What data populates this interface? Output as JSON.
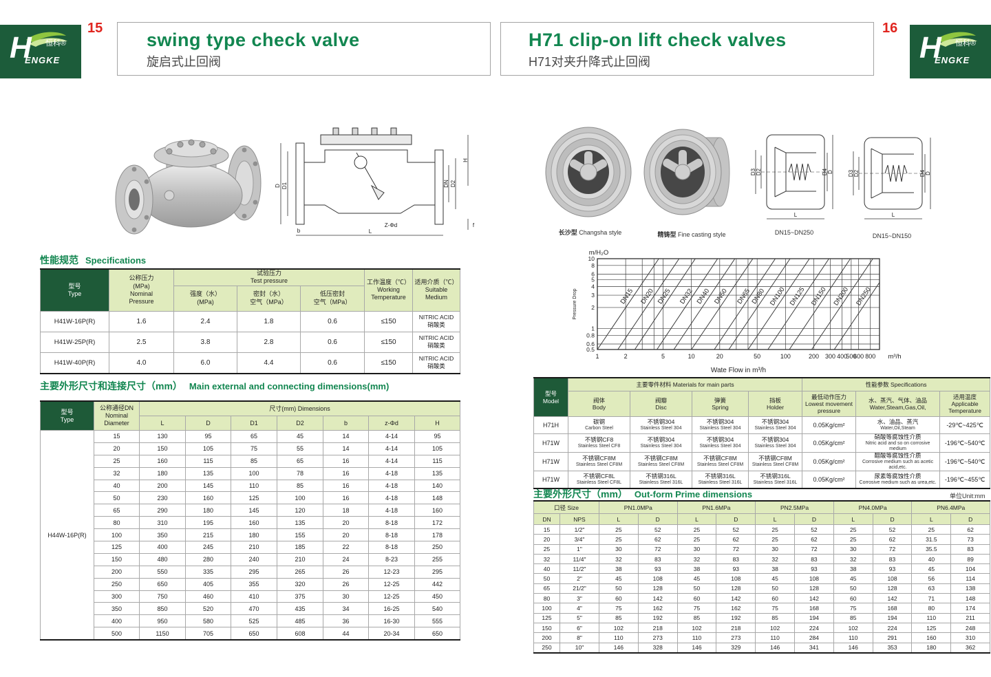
{
  "logo": {
    "brand": "H",
    "brand2": "ENGKE",
    "zh": "恒科®"
  },
  "page_left": {
    "page_number": "15",
    "title": "swing type check valve",
    "subtitle": "旋启式止回阀",
    "drawing": {
      "labels": {
        "d": "D",
        "d1": "D1",
        "dn": "DN",
        "d2": "D2",
        "h": "H",
        "l": "L",
        "b": "b",
        "f": "f",
        "zphid": "Z-Φd"
      }
    },
    "spec": {
      "title_zh": "性能规范",
      "title_en": "Specifications",
      "cols": {
        "type": "型号\nType",
        "nominal": "公称压力\n(MPa)\nNominal\nPressure",
        "test": "试验压力\nTest pressure",
        "strength": "强度（水）\n(MPa)",
        "seal": "密封（水）\n空气（MPa）",
        "low": "低压密封\n空气（MPa）",
        "working": "工作温度（℃）\nWorking\nTemperature",
        "medium": "适用介质（℃）\nSuitable\nMedium"
      },
      "rows": [
        [
          "H41W-16P(R)",
          "1.6",
          "2.4",
          "1.8",
          "0.6",
          "≤150",
          "NITRIC ACID\n硝酸类"
        ],
        [
          "H41W-25P(R)",
          "2.5",
          "3.8",
          "2.8",
          "0.6",
          "≤150",
          "NITRIC ACID\n硝酸类"
        ],
        [
          "H41W-40P(R)",
          "4.0",
          "6.0",
          "4.4",
          "0.6",
          "≤150",
          "NITRIC ACID\n硝酸类"
        ]
      ]
    },
    "dims": {
      "title_zh": "主要外形尺寸和连接尺寸（mm）",
      "title_en": "Main external and connecting dimensions(mm)",
      "cols": {
        "type": "型号\nType",
        "dn": "公称通径DN\nNominal\nDiameter",
        "group": "尺寸(mm) Dimensions",
        "sub": [
          "L",
          "D",
          "D1",
          "D2",
          "b",
          "z-Φd",
          "H"
        ]
      },
      "type_value": "H44W-16P(R)",
      "rows": [
        [
          "15",
          "130",
          "95",
          "65",
          "45",
          "14",
          "4-14",
          "95"
        ],
        [
          "20",
          "150",
          "105",
          "75",
          "55",
          "14",
          "4-14",
          "105"
        ],
        [
          "25",
          "160",
          "115",
          "85",
          "65",
          "16",
          "4-14",
          "115"
        ],
        [
          "32",
          "180",
          "135",
          "100",
          "78",
          "16",
          "4-18",
          "135"
        ],
        [
          "40",
          "200",
          "145",
          "110",
          "85",
          "16",
          "4-18",
          "140"
        ],
        [
          "50",
          "230",
          "160",
          "125",
          "100",
          "16",
          "4-18",
          "148"
        ],
        [
          "65",
          "290",
          "180",
          "145",
          "120",
          "18",
          "4-18",
          "160"
        ],
        [
          "80",
          "310",
          "195",
          "160",
          "135",
          "20",
          "8-18",
          "172"
        ],
        [
          "100",
          "350",
          "215",
          "180",
          "155",
          "20",
          "8-18",
          "178"
        ],
        [
          "125",
          "400",
          "245",
          "210",
          "185",
          "22",
          "8-18",
          "250"
        ],
        [
          "150",
          "480",
          "280",
          "240",
          "210",
          "24",
          "8-23",
          "255"
        ],
        [
          "200",
          "550",
          "335",
          "295",
          "265",
          "26",
          "12-23",
          "295"
        ],
        [
          "250",
          "650",
          "405",
          "355",
          "320",
          "26",
          "12-25",
          "442"
        ],
        [
          "300",
          "750",
          "460",
          "410",
          "375",
          "30",
          "12-25",
          "450"
        ],
        [
          "350",
          "850",
          "520",
          "470",
          "435",
          "34",
          "16-25",
          "540"
        ],
        [
          "400",
          "950",
          "580",
          "525",
          "485",
          "36",
          "16-30",
          "555"
        ],
        [
          "500",
          "1150",
          "705",
          "650",
          "608",
          "44",
          "20-34",
          "650"
        ]
      ]
    }
  },
  "page_right": {
    "page_number": "16",
    "title": "H71 clip-on lift check valves",
    "subtitle": "H71对夹升降式止回阀",
    "photos": [
      {
        "zh": "长沙型",
        "en": "Changsha style"
      },
      {
        "zh": "精铸型",
        "en": "Fine casting style"
      }
    ],
    "drawings": {
      "labels": {
        "d3": "D3",
        "d2": "D2",
        "d4": "D4",
        "d": "D",
        "l": "L"
      },
      "items": [
        {
          "caption": "DN15~DN250"
        },
        {
          "caption": "DN15~DN150"
        }
      ]
    },
    "materials": {
      "cols": {
        "model": "型号\nModel",
        "main_group": "主要零件材料 Materials for main parts",
        "body": "阀体\nBody",
        "disc": "阀瓣\nDisc",
        "spring": "弹簧\nSpring",
        "holder": "挡板\nHolder",
        "spec_group": "性能参数 Specifications",
        "pressure": "最低动作压力\nLowest movement\npressure",
        "medium": "水、蒸汽、气体、油品\nWater,Steam,Gas,Oil,",
        "temp": "适用温度\nApplicable\nTemperature"
      },
      "rows": [
        {
          "model": "H71H",
          "body": {
            "zh": "碳钢",
            "en": "Carbon Steel"
          },
          "disc": {
            "zh": "不锈钢304",
            "en": "Stainless Steel 304"
          },
          "spring": {
            "zh": "不锈钢304",
            "en": "Stainless Steel 304"
          },
          "holder": {
            "zh": "不锈钢304",
            "en": "Stainless Steel 304"
          },
          "pressure": "0.05Kg/cm²",
          "medium": {
            "zh": "水、油品、蒸汽",
            "en": "Water,Oil,Steam"
          },
          "temp": "-29℃~425℃"
        },
        {
          "model": "H71W",
          "body": {
            "zh": "不锈钢CF8",
            "en": "Stainless Steel CF8"
          },
          "disc": {
            "zh": "不锈钢304",
            "en": "Stainless Steel 304"
          },
          "spring": {
            "zh": "不锈钢304",
            "en": "Stainless Steel 304"
          },
          "holder": {
            "zh": "不锈钢304",
            "en": "Stainless Steel 304"
          },
          "pressure": "0.05Kg/cm²",
          "medium": {
            "zh": "硝酸等腐蚀性介质",
            "en": "Nitric acid and so on corrosive medium"
          },
          "temp": "-196℃~540℃"
        },
        {
          "model": "H71W",
          "body": {
            "zh": "不锈钢CF8M",
            "en": "Stainless Steel CF8M"
          },
          "disc": {
            "zh": "不锈钢CF8M",
            "en": "Stainless Steel CF8M"
          },
          "spring": {
            "zh": "不锈钢CF8M",
            "en": "Stainless Steel CF8M"
          },
          "holder": {
            "zh": "不锈钢CF8M",
            "en": "Stainless Steel CF8M"
          },
          "pressure": "0.05Kg/cm²",
          "medium": {
            "zh": "醋酸等腐蚀性介质",
            "en": "Corrosive medium such as acetic acid,etc."
          },
          "temp": "-196℃~540℃"
        },
        {
          "model": "H71W",
          "body": {
            "zh": "不锈钢CF8L",
            "en": "Stainless Steel CF8L"
          },
          "disc": {
            "zh": "不锈钢316L",
            "en": "Stainless Steel 316L"
          },
          "spring": {
            "zh": "不锈钢316L",
            "en": "Stainless Steel 316L"
          },
          "holder": {
            "zh": "不锈钢316L",
            "en": "Stainless Steel 316L"
          },
          "pressure": "0.05Kg/cm²",
          "medium": {
            "zh": "尿素等腐蚀性介质",
            "en": "Corrosive medium such as urea,etc."
          },
          "temp": "-196℃~455℃"
        }
      ]
    },
    "outform": {
      "title_zh": "主要外形尺寸（mm）",
      "title_en": "Out-form Prime dimensions",
      "unit": "单位Unit:mm",
      "cols": {
        "size": "口径 Size",
        "dn": "DN",
        "nps": "NPS",
        "L": "L",
        "D": "D",
        "pn": [
          "PN1.0MPa",
          "PN1.6MPa",
          "PN2.5MPa",
          "PN4.0MPa",
          "PN6.4MPa"
        ]
      },
      "rows": [
        [
          "15",
          "1/2\"",
          "25",
          "52",
          "25",
          "52",
          "25",
          "52",
          "25",
          "52",
          "25",
          "62"
        ],
        [
          "20",
          "3/4\"",
          "25",
          "62",
          "25",
          "62",
          "25",
          "62",
          "25",
          "62",
          "31.5",
          "73"
        ],
        [
          "25",
          "1\"",
          "30",
          "72",
          "30",
          "72",
          "30",
          "72",
          "30",
          "72",
          "35.5",
          "83"
        ],
        [
          "32",
          "11/4\"",
          "32",
          "83",
          "32",
          "83",
          "32",
          "83",
          "32",
          "83",
          "40",
          "89"
        ],
        [
          "40",
          "11/2\"",
          "38",
          "93",
          "38",
          "93",
          "38",
          "93",
          "38",
          "93",
          "45",
          "104"
        ],
        [
          "50",
          "2\"",
          "45",
          "108",
          "45",
          "108",
          "45",
          "108",
          "45",
          "108",
          "56",
          "114"
        ],
        [
          "65",
          "21/2\"",
          "50",
          "128",
          "50",
          "128",
          "50",
          "128",
          "50",
          "128",
          "63",
          "138"
        ],
        [
          "80",
          "3\"",
          "60",
          "142",
          "60",
          "142",
          "60",
          "142",
          "60",
          "142",
          "71",
          "148"
        ],
        [
          "100",
          "4\"",
          "75",
          "162",
          "75",
          "162",
          "75",
          "168",
          "75",
          "168",
          "80",
          "174"
        ],
        [
          "125",
          "5\"",
          "85",
          "192",
          "85",
          "192",
          "85",
          "194",
          "85",
          "194",
          "110",
          "211"
        ],
        [
          "150",
          "6\"",
          "102",
          "218",
          "102",
          "218",
          "102",
          "224",
          "102",
          "224",
          "125",
          "248"
        ],
        [
          "200",
          "8\"",
          "110",
          "273",
          "110",
          "273",
          "110",
          "284",
          "110",
          "291",
          "160",
          "310"
        ],
        [
          "250",
          "10\"",
          "146",
          "328",
          "146",
          "329",
          "146",
          "341",
          "146",
          "353",
          "180",
          "362"
        ]
      ]
    }
  },
  "chart_data": {
    "type": "line",
    "title": "",
    "xlabel": "Wate Flow in m³/h",
    "ylabel": "Pressure Drop",
    "y_unit": "m/H₂O",
    "x_unit": "m³/h",
    "x_scale": "log",
    "y_scale": "log",
    "xlim": [
      1,
      1000
    ],
    "ylim": [
      0.5,
      10
    ],
    "x_ticks": [
      1,
      2,
      5,
      10,
      20,
      50,
      100,
      200,
      300,
      400,
      500,
      600,
      800
    ],
    "grid_x": [
      1,
      2,
      3,
      4,
      5,
      10,
      20,
      30,
      40,
      50,
      100,
      200,
      300,
      400,
      500,
      600,
      800
    ],
    "y_ticks": [
      10,
      8,
      6,
      5,
      4,
      3,
      2,
      1,
      0.8,
      0.6,
      0.5
    ],
    "grid_on": true,
    "legend_position": "labels-on-lines",
    "series": [
      {
        "name": "DN15",
        "flow_at_0.5m": 1,
        "flow_at_10m": 4.5
      },
      {
        "name": "DN20",
        "flow_at_0.5m": 1.65,
        "flow_at_10m": 7.4
      },
      {
        "name": "DN25",
        "flow_at_0.5m": 2.5,
        "flow_at_10m": 11
      },
      {
        "name": "DN32",
        "flow_at_0.5m": 4.3,
        "flow_at_10m": 19
      },
      {
        "name": "DN40",
        "flow_at_0.5m": 6.5,
        "flow_at_10m": 29
      },
      {
        "name": "DN50",
        "flow_at_0.5m": 10,
        "flow_at_10m": 45
      },
      {
        "name": "DN65",
        "flow_at_0.5m": 17.5,
        "flow_at_10m": 78
      },
      {
        "name": "DN80",
        "flow_at_0.5m": 25,
        "flow_at_10m": 112
      },
      {
        "name": "DN100",
        "flow_at_0.5m": 40,
        "flow_at_10m": 180
      },
      {
        "name": "DN125",
        "flow_at_0.5m": 65,
        "flow_at_10m": 290
      },
      {
        "name": "DN150",
        "flow_at_0.5m": 110,
        "flow_at_10m": 490
      },
      {
        "name": "DN200",
        "flow_at_0.5m": 190,
        "flow_at_10m": 850
      },
      {
        "name": "DN250",
        "flow_at_0.5m": 330,
        "flow_at_10m": 1480
      }
    ]
  }
}
